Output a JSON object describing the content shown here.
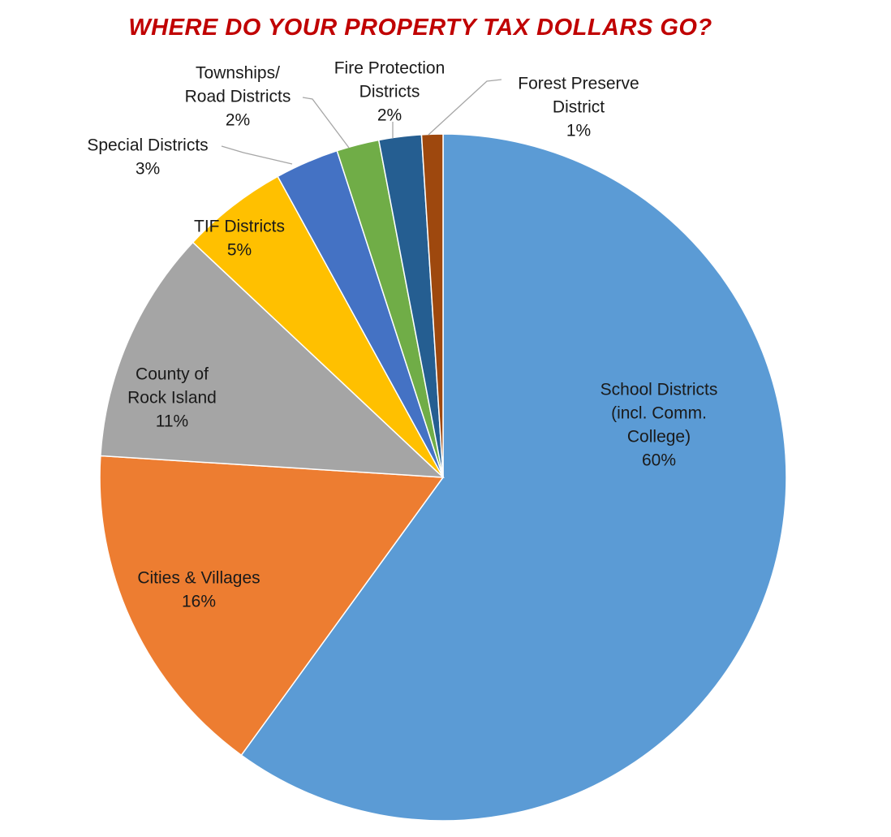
{
  "chart_data": {
    "type": "pie",
    "title": "WHERE DO YOUR PROPERTY TAX DOLLARS GO?",
    "start_angle": "12 o'clock, clockwise",
    "slices": [
      {
        "name": "School Districts (incl. Comm. College)",
        "label_lines": [
          "School Districts",
          "(incl. Comm.",
          "College)"
        ],
        "value": 60,
        "label": "60%",
        "color": "#5b9bd5"
      },
      {
        "name": "Cities & Villages",
        "label_lines": [
          "Cities & Villages"
        ],
        "value": 16,
        "label": "16%",
        "color": "#ed7d31"
      },
      {
        "name": "County of Rock Island",
        "label_lines": [
          "County of",
          "Rock Island"
        ],
        "value": 11,
        "label": "11%",
        "color": "#a5a5a5"
      },
      {
        "name": "TIF Districts",
        "label_lines": [
          "TIF Districts"
        ],
        "value": 5,
        "label": "5%",
        "color": "#ffc000"
      },
      {
        "name": "Special Districts",
        "label_lines": [
          "Special Districts"
        ],
        "value": 3,
        "label": "3%",
        "color": "#4472c4"
      },
      {
        "name": "Townships/ Road Districts",
        "label_lines": [
          "Townships/",
          "Road Districts"
        ],
        "value": 2,
        "label": "2%",
        "color": "#70ad47"
      },
      {
        "name": "Fire Protection Districts",
        "label_lines": [
          "Fire Protection",
          "Districts"
        ],
        "value": 2,
        "label": "2%",
        "color": "#255e91"
      },
      {
        "name": "Forest Preserve District",
        "label_lines": [
          "Forest Preserve",
          "District"
        ],
        "value": 1,
        "label": "1%",
        "color": "#9e480e"
      }
    ],
    "legend": "none (data labels on/beside slices)"
  }
}
